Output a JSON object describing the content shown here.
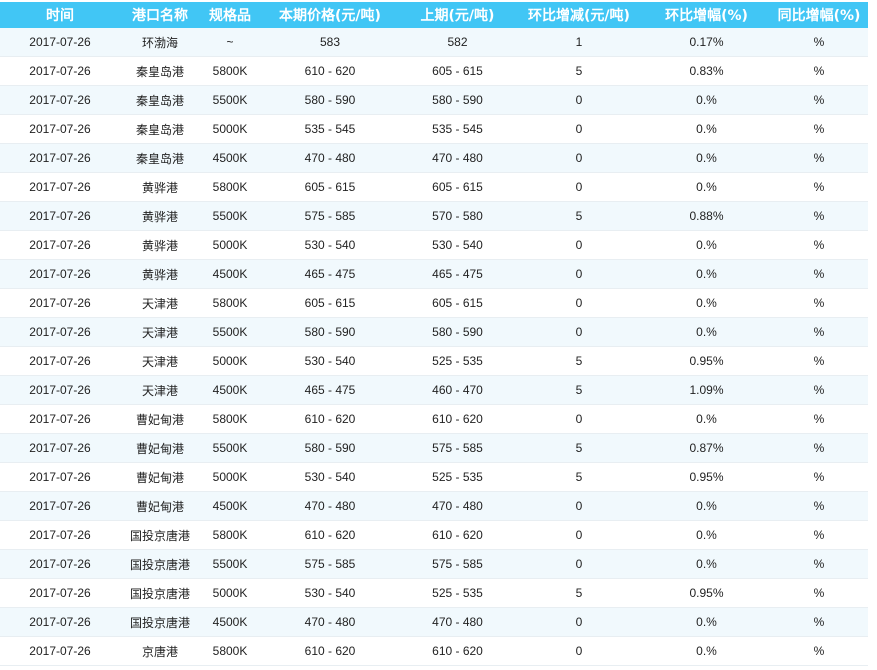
{
  "columns": [
    "时间",
    "港口名称",
    "规格品",
    "本期价格(元/吨)",
    "上期(元/吨)",
    "环比增减(元/吨)",
    "环比增幅(%)",
    "同比增幅(%)"
  ],
  "rows": [
    [
      "2017-07-26",
      "环渤海",
      "~",
      "583",
      "582",
      "1",
      "0.17%",
      "%"
    ],
    [
      "2017-07-26",
      "秦皇岛港",
      "5800K",
      "610 - 620",
      "605 - 615",
      "5",
      "0.83%",
      "%"
    ],
    [
      "2017-07-26",
      "秦皇岛港",
      "5500K",
      "580 - 590",
      "580 - 590",
      "0",
      "0.%",
      "%"
    ],
    [
      "2017-07-26",
      "秦皇岛港",
      "5000K",
      "535 - 545",
      "535 - 545",
      "0",
      "0.%",
      "%"
    ],
    [
      "2017-07-26",
      "秦皇岛港",
      "4500K",
      "470 - 480",
      "470 - 480",
      "0",
      "0.%",
      "%"
    ],
    [
      "2017-07-26",
      "黄骅港",
      "5800K",
      "605 - 615",
      "605 - 615",
      "0",
      "0.%",
      "%"
    ],
    [
      "2017-07-26",
      "黄骅港",
      "5500K",
      "575 - 585",
      "570 - 580",
      "5",
      "0.88%",
      "%"
    ],
    [
      "2017-07-26",
      "黄骅港",
      "5000K",
      "530 - 540",
      "530 - 540",
      "0",
      "0.%",
      "%"
    ],
    [
      "2017-07-26",
      "黄骅港",
      "4500K",
      "465 - 475",
      "465 - 475",
      "0",
      "0.%",
      "%"
    ],
    [
      "2017-07-26",
      "天津港",
      "5800K",
      "605 - 615",
      "605 - 615",
      "0",
      "0.%",
      "%"
    ],
    [
      "2017-07-26",
      "天津港",
      "5500K",
      "580 - 590",
      "580 - 590",
      "0",
      "0.%",
      "%"
    ],
    [
      "2017-07-26",
      "天津港",
      "5000K",
      "530 - 540",
      "525 - 535",
      "5",
      "0.95%",
      "%"
    ],
    [
      "2017-07-26",
      "天津港",
      "4500K",
      "465 - 475",
      "460 - 470",
      "5",
      "1.09%",
      "%"
    ],
    [
      "2017-07-26",
      "曹妃甸港",
      "5800K",
      "610 - 620",
      "610 - 620",
      "0",
      "0.%",
      "%"
    ],
    [
      "2017-07-26",
      "曹妃甸港",
      "5500K",
      "580 - 590",
      "575 - 585",
      "5",
      "0.87%",
      "%"
    ],
    [
      "2017-07-26",
      "曹妃甸港",
      "5000K",
      "530 - 540",
      "525 - 535",
      "5",
      "0.95%",
      "%"
    ],
    [
      "2017-07-26",
      "曹妃甸港",
      "4500K",
      "470 - 480",
      "470 - 480",
      "0",
      "0.%",
      "%"
    ],
    [
      "2017-07-26",
      "国投京唐港",
      "5800K",
      "610 - 620",
      "610 - 620",
      "0",
      "0.%",
      "%"
    ],
    [
      "2017-07-26",
      "国投京唐港",
      "5500K",
      "575 - 585",
      "575 - 585",
      "0",
      "0.%",
      "%"
    ],
    [
      "2017-07-26",
      "国投京唐港",
      "5000K",
      "530 - 540",
      "525 - 535",
      "5",
      "0.95%",
      "%"
    ],
    [
      "2017-07-26",
      "国投京唐港",
      "4500K",
      "470 - 480",
      "470 - 480",
      "0",
      "0.%",
      "%"
    ],
    [
      "2017-07-26",
      "京唐港",
      "5800K",
      "610 - 620",
      "610 - 620",
      "0",
      "0.%",
      "%"
    ]
  ],
  "colors": {
    "header_bg": "#41c6f5",
    "stripe": "#f1f9fd"
  }
}
